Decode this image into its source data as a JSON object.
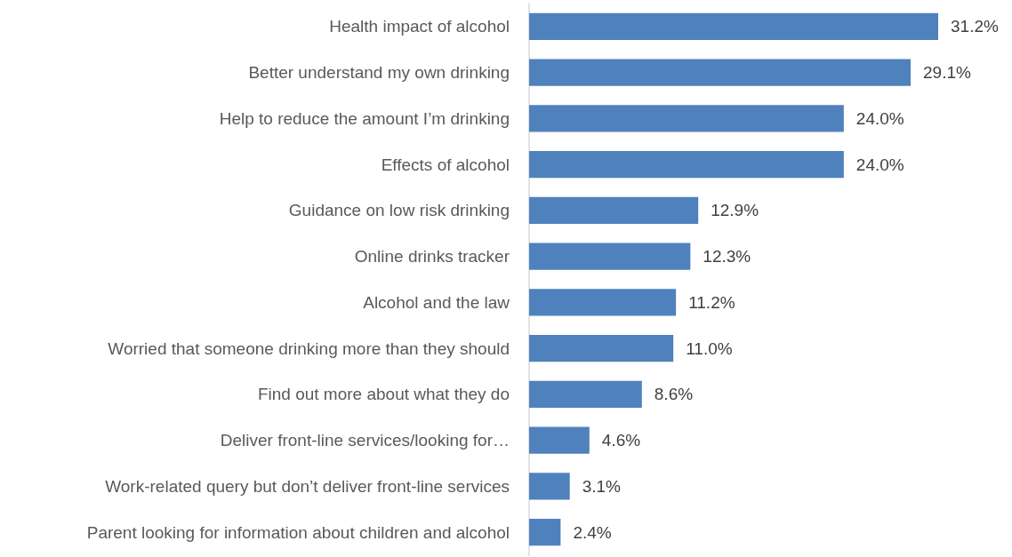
{
  "chart_data": {
    "type": "bar",
    "orientation": "horizontal",
    "categories": [
      "Health impact of alcohol",
      "Better understand my own drinking",
      "Help to reduce the amount I’m drinking",
      "Effects of alcohol",
      "Guidance on low risk drinking",
      "Online drinks tracker",
      "Alcohol and the law",
      "Worried that someone drinking more than they should",
      "Find out more about what they do",
      "Deliver front-line services/looking for…",
      "Work-related query but don’t deliver front-line services",
      "Parent looking for information about children and alcohol"
    ],
    "values": [
      31.2,
      29.1,
      24.0,
      24.0,
      12.9,
      12.3,
      11.2,
      11.0,
      8.6,
      4.6,
      3.1,
      2.4
    ],
    "value_labels": [
      "31.2%",
      "29.1%",
      "24.0%",
      "24.0%",
      "12.9%",
      "12.3%",
      "11.2%",
      "11.0%",
      "8.6%",
      "4.6%",
      "3.1%",
      "2.4%"
    ],
    "color": "#4f81bd"
  }
}
